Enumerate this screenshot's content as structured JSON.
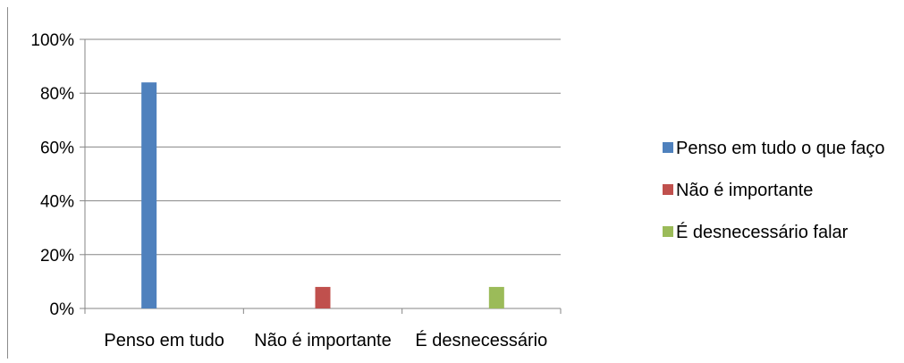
{
  "chart_data": {
    "type": "bar",
    "categories": [
      "Penso em tudo",
      "Não é importante",
      "É desnecessário"
    ],
    "series": [
      {
        "name": "Penso em tudo o que faço",
        "color": "#4f81bd",
        "values": [
          84,
          0,
          0
        ]
      },
      {
        "name": "Não é importante",
        "color": "#c0504d",
        "values": [
          0,
          8,
          0
        ]
      },
      {
        "name": "É desnecessário falar",
        "color": "#9bbb59",
        "values": [
          0,
          0,
          8
        ]
      }
    ],
    "ylim": [
      0,
      100
    ],
    "y_ticks": [
      0,
      20,
      40,
      60,
      80,
      100
    ],
    "y_tick_labels": [
      "0%",
      "20%",
      "40%",
      "60%",
      "80%",
      "100%"
    ],
    "grid": true,
    "legend": "right",
    "title": "",
    "xlabel": "",
    "ylabel": ""
  }
}
